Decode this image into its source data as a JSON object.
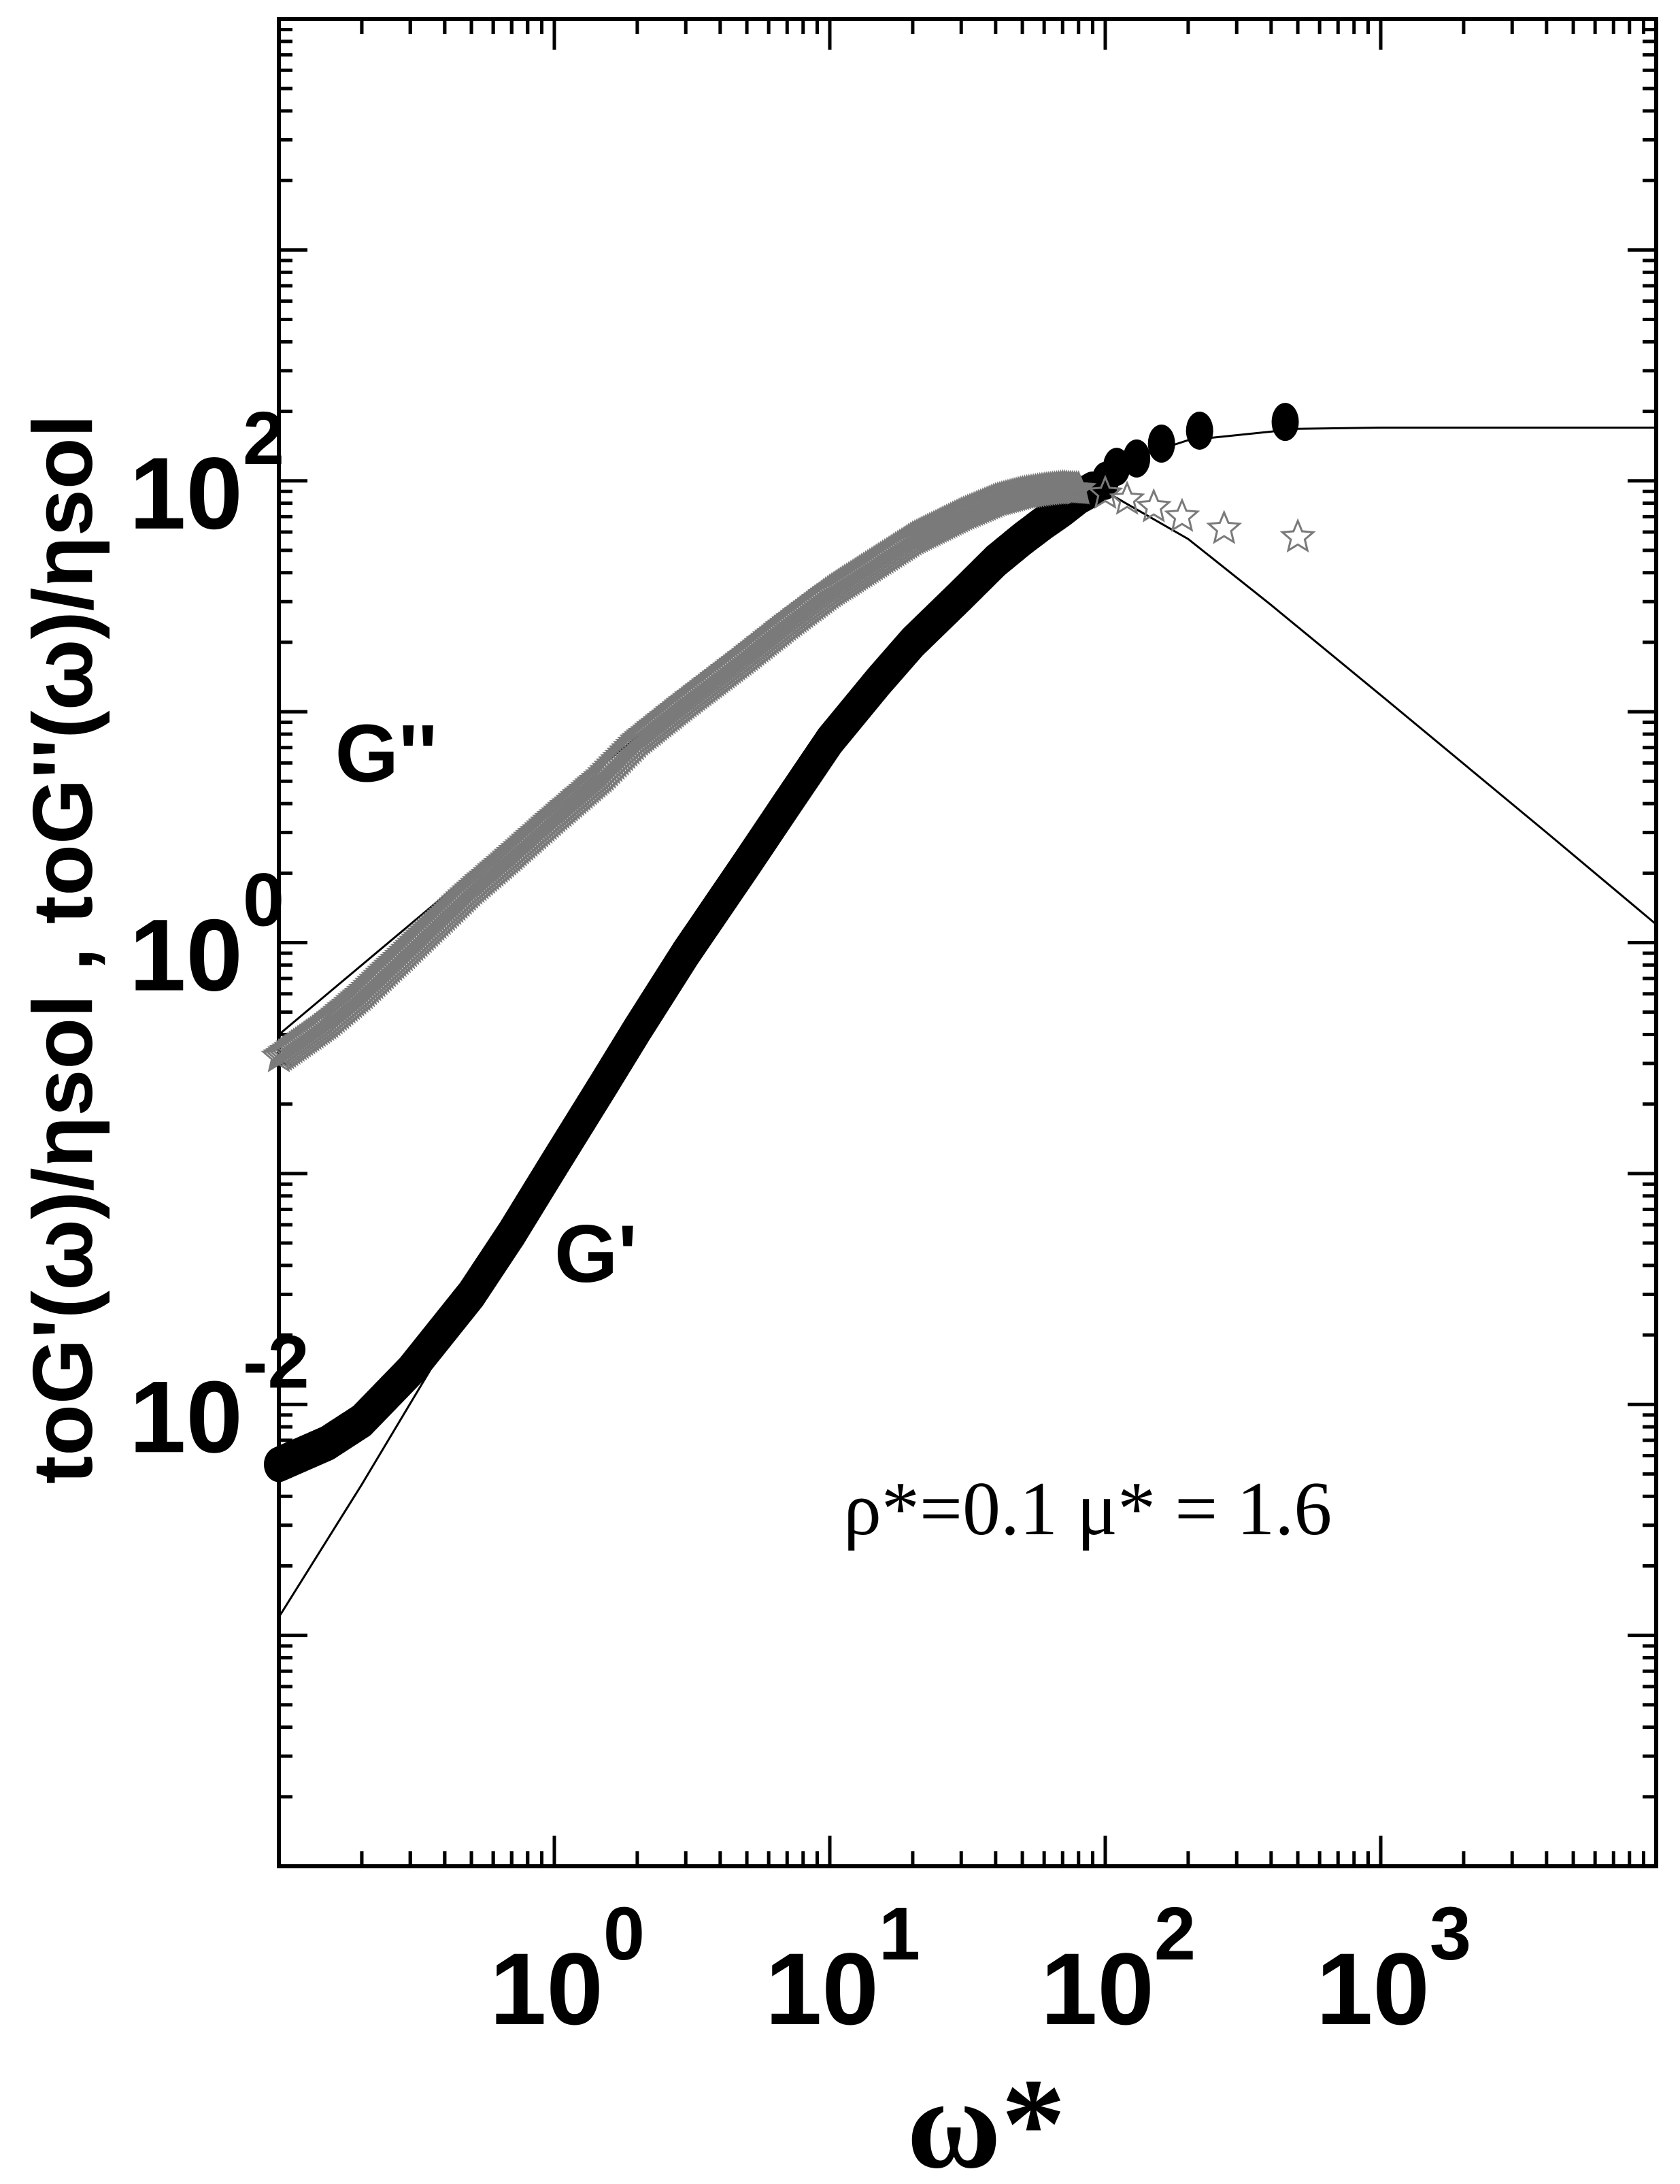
{
  "chart_data": {
    "type": "scatter",
    "title": "",
    "xlabel": "ω*",
    "ylabel": "toG'(ω)/ηsol , toG''(ω)/ηsol",
    "x_scale": "log",
    "y_scale": "log",
    "xlim": [
      0.1,
      10000
    ],
    "ylim": [
      0.0001,
      10000
    ],
    "x_ticks": [
      {
        "base": "10",
        "exp": "0",
        "value": 1
      },
      {
        "base": "10",
        "exp": "1",
        "value": 10
      },
      {
        "base": "10",
        "exp": "2",
        "value": 100
      },
      {
        "base": "10",
        "exp": "3",
        "value": 1000
      }
    ],
    "y_ticks": [
      {
        "base": "10",
        "exp": "-2",
        "value": 0.01
      },
      {
        "base": "10",
        "exp": "0",
        "value": 1
      },
      {
        "base": "10",
        "exp": "2",
        "value": 100
      }
    ],
    "annotation": "ρ*=0.1   μ*  = 1.6",
    "series": [
      {
        "name": "G'",
        "marker": "filled-circle",
        "color": "#000000",
        "points": [
          [
            0.1,
            0.0055
          ],
          [
            0.15,
            0.0068
          ],
          [
            0.2,
            0.0085
          ],
          [
            0.3,
            0.014
          ],
          [
            0.5,
            0.03
          ],
          [
            0.7,
            0.055
          ],
          [
            1,
            0.11
          ],
          [
            1.5,
            0.24
          ],
          [
            2,
            0.42
          ],
          [
            3,
            0.9
          ],
          [
            5,
            2.2
          ],
          [
            7,
            4.0
          ],
          [
            10,
            7.5
          ],
          [
            15,
            13.5
          ],
          [
            20,
            20
          ],
          [
            30,
            32
          ],
          [
            40,
            45
          ],
          [
            50,
            56
          ],
          [
            60,
            66
          ],
          [
            70,
            75
          ],
          [
            80,
            85
          ],
          [
            90,
            92
          ],
          [
            100,
            100
          ],
          [
            110,
            115
          ],
          [
            130,
            125
          ],
          [
            160,
            145
          ],
          [
            220,
            165
          ],
          [
            450,
            180
          ]
        ]
      },
      {
        "name": "G''",
        "marker": "open-star",
        "color": "#7a7a7a",
        "points": [
          [
            0.1,
            0.32
          ],
          [
            0.15,
            0.45
          ],
          [
            0.2,
            0.6
          ],
          [
            0.3,
            0.95
          ],
          [
            0.5,
            1.7
          ],
          [
            0.7,
            2.4
          ],
          [
            1,
            3.5
          ],
          [
            1.5,
            5.3
          ],
          [
            2,
            7.5
          ],
          [
            3,
            11
          ],
          [
            5,
            17.5
          ],
          [
            7,
            24
          ],
          [
            10,
            33
          ],
          [
            15,
            45
          ],
          [
            20,
            56
          ],
          [
            30,
            71
          ],
          [
            40,
            82
          ],
          [
            50,
            88
          ],
          [
            60,
            91
          ],
          [
            70,
            93
          ],
          [
            80,
            92
          ],
          [
            100,
            88
          ],
          [
            120,
            83
          ],
          [
            150,
            77
          ],
          [
            190,
            70
          ],
          [
            270,
            62
          ],
          [
            500,
            57
          ]
        ]
      }
    ],
    "model_curves": [
      {
        "for": "G''",
        "points": [
          [
            0.1,
            0.4
          ],
          [
            0.3,
            1.2
          ],
          [
            1,
            4.0
          ],
          [
            3,
            11.5
          ],
          [
            10,
            32
          ],
          [
            20,
            55
          ],
          [
            40,
            88
          ],
          [
            60,
            100
          ],
          [
            100,
            90
          ],
          [
            200,
            56
          ],
          [
            400,
            29
          ],
          [
            1000,
            11.8
          ],
          [
            4000,
            3.0
          ],
          [
            10000,
            1.2
          ]
        ]
      },
      {
        "for": "G'",
        "points": [
          [
            0.1,
            0.0012
          ],
          [
            0.2,
            0.0045
          ],
          [
            0.5,
            0.028
          ],
          [
            1,
            0.11
          ],
          [
            2,
            0.42
          ],
          [
            5,
            2.3
          ],
          [
            10,
            7.6
          ],
          [
            20,
            21
          ],
          [
            50,
            62
          ],
          [
            100,
            115
          ],
          [
            200,
            150
          ],
          [
            500,
            168
          ],
          [
            1000,
            170
          ],
          [
            10000,
            170
          ]
        ]
      }
    ],
    "series_labels": [
      {
        "text": "G''",
        "x": 0.16,
        "y": 5.0
      },
      {
        "text": "G'",
        "x": 1.0,
        "y": 0.034
      }
    ]
  }
}
